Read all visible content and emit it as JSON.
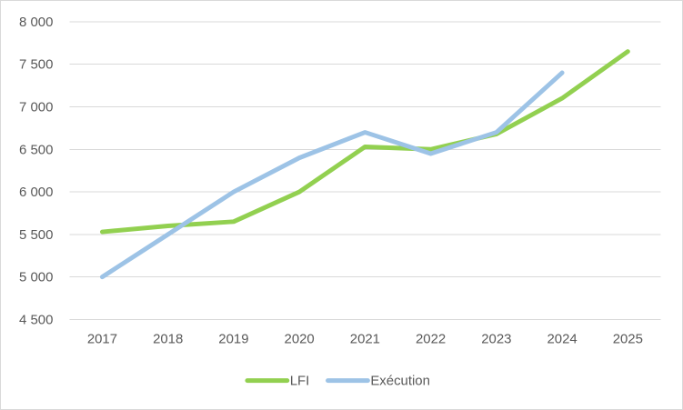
{
  "chart_data": {
    "type": "line",
    "title": "",
    "xlabel": "",
    "ylabel": "",
    "categories": [
      "2017",
      "2018",
      "2019",
      "2020",
      "2021",
      "2022",
      "2023",
      "2024",
      "2025"
    ],
    "series": [
      {
        "name": "LFI",
        "color": "#92D050",
        "values": [
          5530,
          5600,
          5650,
          6000,
          6530,
          6500,
          6680,
          7100,
          7650
        ]
      },
      {
        "name": "Exécution",
        "color": "#9DC3E6",
        "values": [
          5000,
          5500,
          6000,
          6400,
          6700,
          6450,
          6700,
          7400
        ]
      }
    ],
    "ylim": [
      4500,
      8000
    ],
    "y_step": 500,
    "y_tick_labels": [
      "4 500",
      "5 000",
      "5 500",
      "6 000",
      "6 500",
      "7 000",
      "7 500",
      "8 000"
    ],
    "grid": true,
    "legend_position": "bottom",
    "colors": {
      "grid": "#D9D9D9",
      "axis_text": "#595959",
      "background": "#FFFFFF",
      "frame_border": "#D9D9D9"
    }
  }
}
